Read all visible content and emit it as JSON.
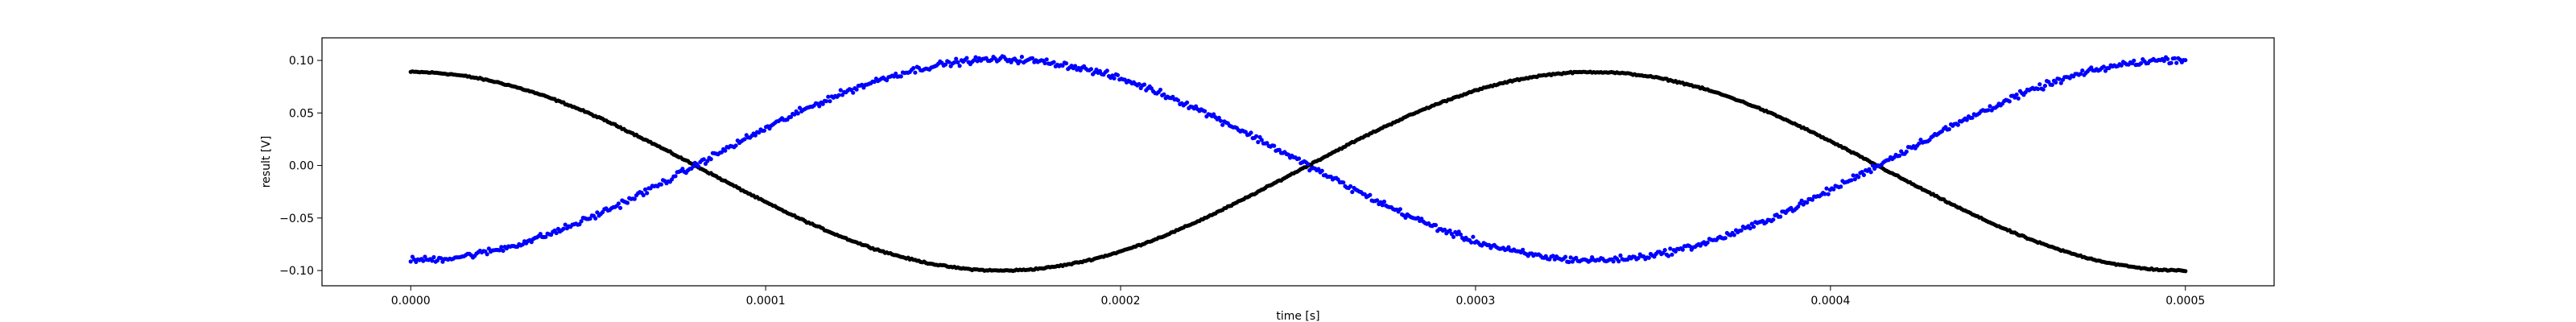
{
  "chart_data": {
    "type": "scatter",
    "xlabel": "time [s]",
    "ylabel": "result [V]",
    "xlim": [
      -2.5e-05,
      0.000525
    ],
    "ylim": [
      -0.1145,
      0.1215
    ],
    "xticks": [
      0.0,
      0.0001,
      0.0002,
      0.0003,
      0.0004,
      0.0005
    ],
    "xtick_labels": [
      "0.0000",
      "0.0001",
      "0.0002",
      "0.0003",
      "0.0004",
      "0.0005"
    ],
    "yticks": [
      -0.1,
      -0.05,
      0.0,
      0.05,
      0.1
    ],
    "ytick_labels": [
      "−0.10",
      "−0.05",
      "0.00",
      "0.05",
      "0.10"
    ],
    "grid": false,
    "series": [
      {
        "color": "#000000",
        "marker": "dot",
        "x_range": [
          0.0,
          0.0005
        ],
        "points": 1000,
        "model": {
          "kind": "cosine",
          "offset": -0.0055,
          "amplitude": 0.0945,
          "period": 0.000333,
          "phase": 0.0,
          "noise": 0.001
        }
      },
      {
        "color": "#0000ff",
        "marker": "dot",
        "x_range": [
          0.0,
          0.0005
        ],
        "points": 1000,
        "model": {
          "kind": "cosine",
          "offset": 0.0055,
          "amplitude": -0.0955,
          "period": 0.000333,
          "phase": 0.0,
          "noise": 0.0045
        }
      }
    ]
  }
}
